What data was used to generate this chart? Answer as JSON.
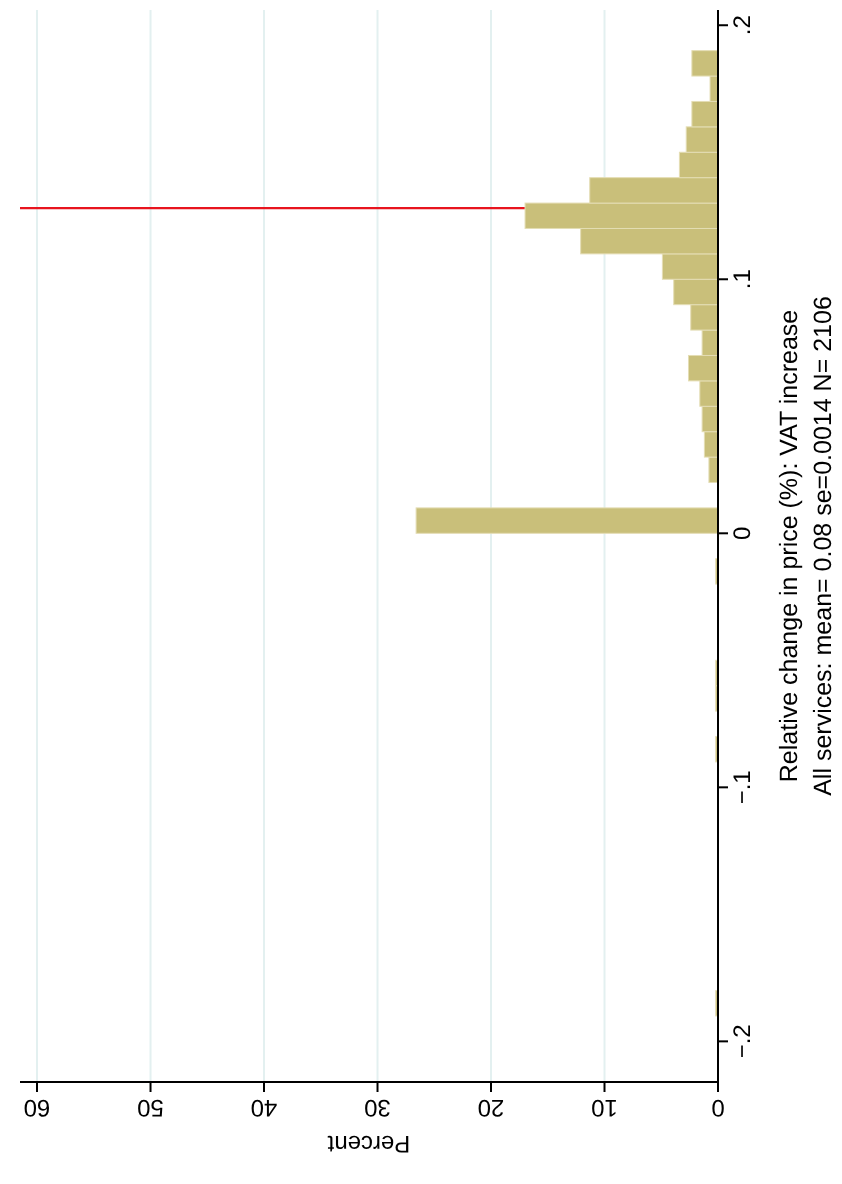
{
  "chart_data": {
    "type": "histogram",
    "orientation": "horizontal",
    "ylabel": "Relative change in price (%): VAT increase",
    "xlabel": "Percent",
    "annotations": [
      "All services: mean=  0.08 se=0.0014 N= 2106"
    ],
    "bins": [
      -0.2,
      -0.19,
      -0.18,
      -0.17,
      -0.16,
      -0.15,
      -0.14,
      -0.13,
      -0.12,
      -0.11,
      -0.1,
      -0.09,
      -0.08,
      -0.07,
      -0.06,
      -0.05,
      -0.04,
      -0.03,
      -0.02,
      -0.01,
      0,
      0.01,
      0.02,
      0.03,
      0.04,
      0.05,
      0.06,
      0.07,
      0.08,
      0.09,
      0.1,
      0.11,
      0.12,
      0.13,
      0.14,
      0.15,
      0.16,
      0.17,
      0.18,
      0.19,
      0.2
    ],
    "values": [
      0,
      0.2,
      0,
      0,
      0,
      0,
      0,
      0,
      0,
      0,
      0,
      0.2,
      0,
      0.2,
      0.2,
      0,
      0,
      0,
      0.2,
      0,
      26.6,
      0,
      0.8,
      1.2,
      1.4,
      1.6,
      2.6,
      1.4,
      2.4,
      3.9,
      4.9,
      12.1,
      17.0,
      11.3,
      3.4,
      2.8,
      2.3,
      0.7,
      2.3,
      0
    ],
    "color": "#c9bf7a",
    "ylim": [
      -0.216,
      0.206
    ],
    "yticks": [
      {
        "value": -0.2,
        "label": "−.2"
      },
      {
        "value": -0.1,
        "label": "−.1"
      },
      0,
      {
        "value": 0.1,
        "label": ".1"
      },
      {
        "value": 0.2,
        "label": ".2"
      }
    ],
    "xlim": [
      61.5,
      0
    ],
    "xticks": [
      0,
      10,
      20,
      30,
      40,
      50,
      60
    ],
    "grid": "x",
    "ref_lines": [
      {
        "axis": "y",
        "value": 0.128,
        "color": "#e8141e"
      }
    ]
  }
}
